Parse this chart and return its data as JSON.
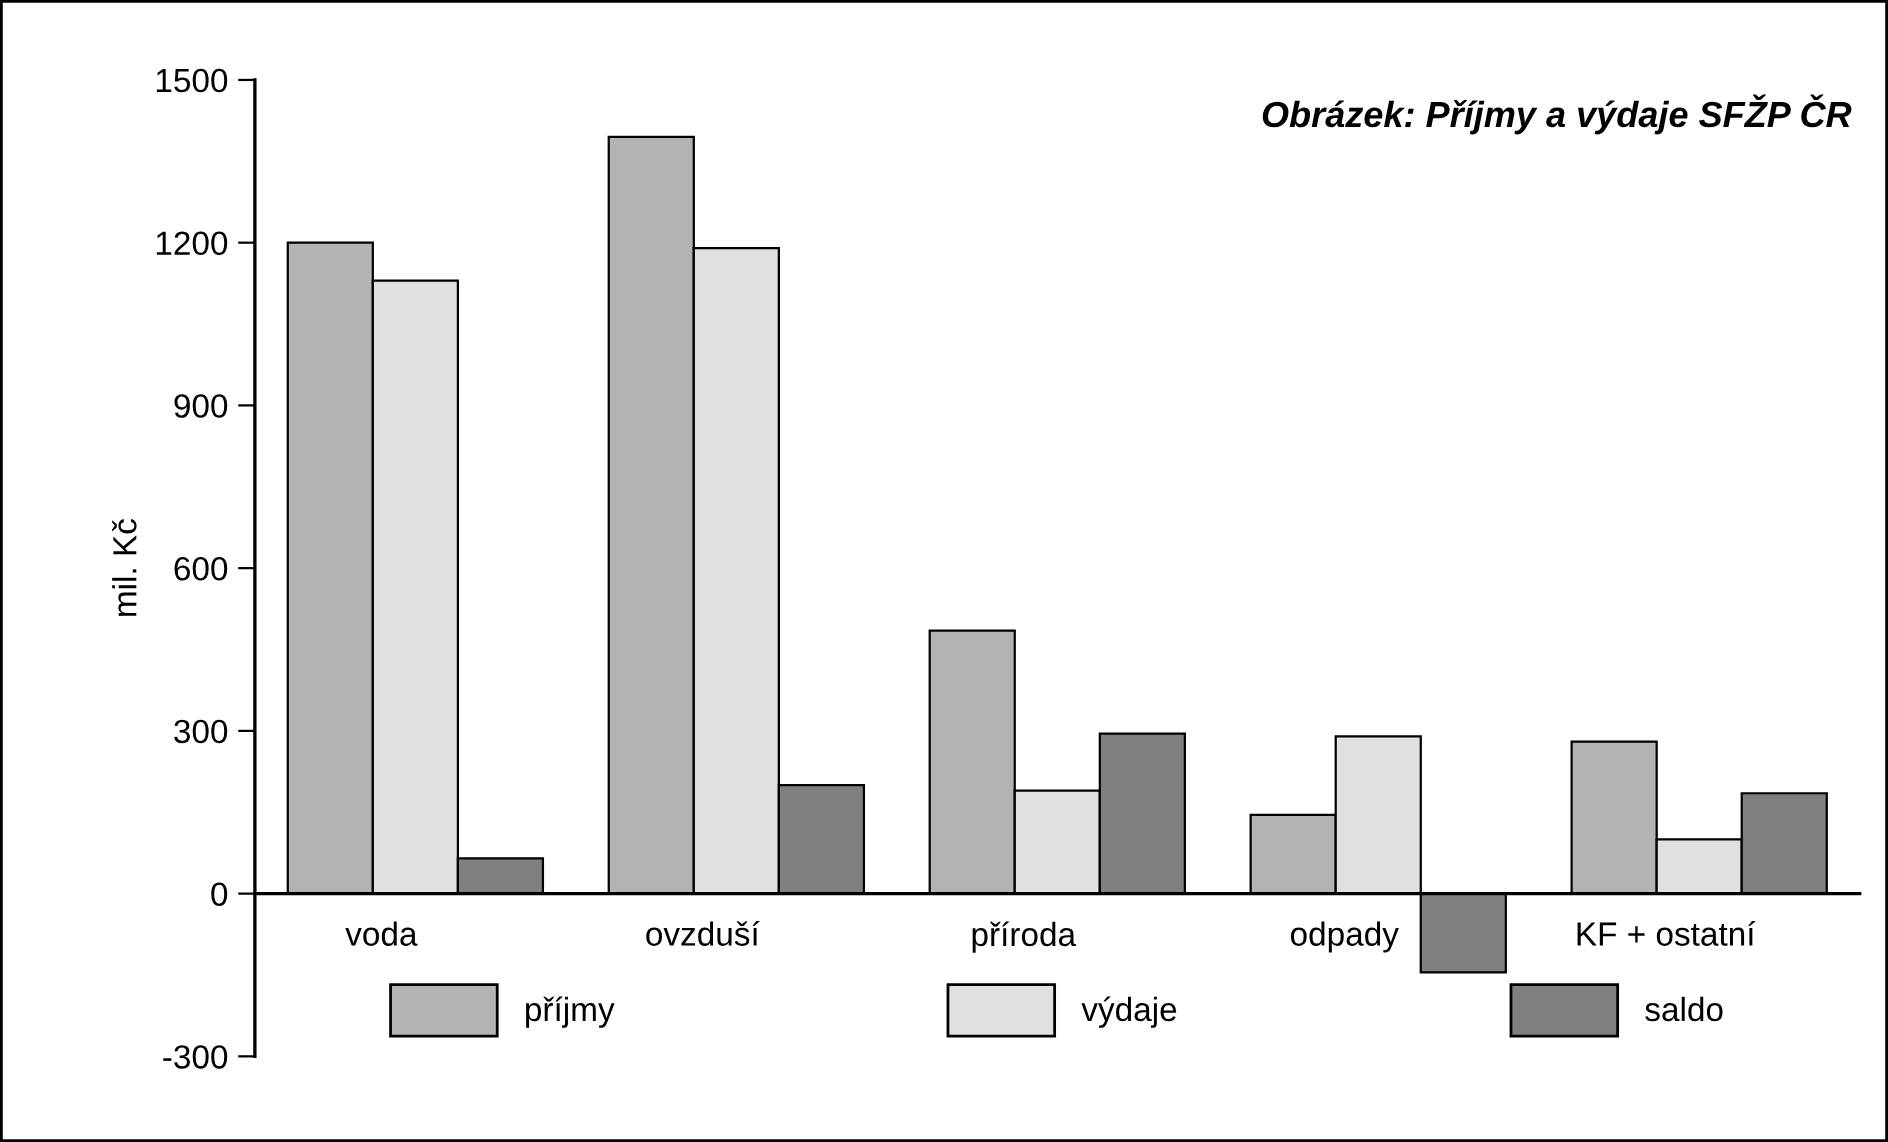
{
  "chart_data": {
    "type": "bar",
    "title": "Obrázek: Příjmy a výdaje SFŽP ČR",
    "ylabel": "mil. Kč",
    "categories": [
      "voda",
      "ovzduší",
      "příroda",
      "odpady",
      "KF + ostatní"
    ],
    "series": [
      {
        "name": "příjmy",
        "color": "#b3b3b3",
        "values": [
          1200,
          1395,
          485,
          145,
          280
        ]
      },
      {
        "name": "výdaje",
        "color": "#e0e0e0",
        "values": [
          1130,
          1190,
          190,
          290,
          100
        ]
      },
      {
        "name": "saldo",
        "color": "#808080",
        "values": [
          65,
          200,
          295,
          -145,
          185
        ]
      }
    ],
    "ylim": [
      -300,
      1500
    ],
    "yticks": [
      -300,
      0,
      300,
      600,
      900,
      1200,
      1500
    ],
    "grid": false,
    "legend": "bottom"
  }
}
